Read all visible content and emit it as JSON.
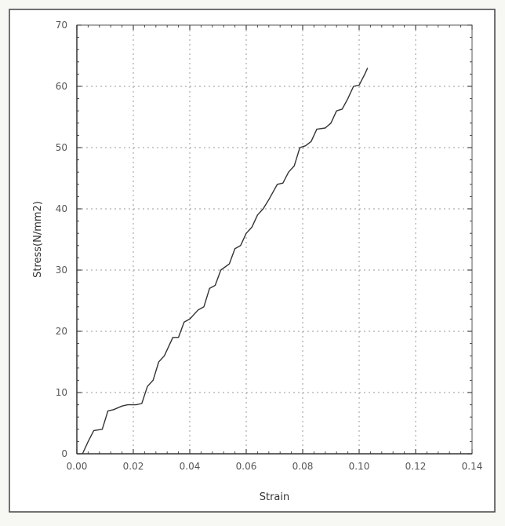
{
  "chart_data": {
    "type": "line",
    "xlabel": "Strain",
    "ylabel": "Stress(N/mm2)",
    "xlim": [
      0,
      0.14
    ],
    "ylim": [
      0,
      70
    ],
    "x_ticks": [
      "0.00",
      "0.02",
      "0.04",
      "0.06",
      "0.08",
      "0.10",
      "0.12",
      "0.14"
    ],
    "y_ticks": [
      "0",
      "10",
      "20",
      "30",
      "40",
      "50",
      "60",
      "70"
    ],
    "grid": true,
    "series": [
      {
        "color": "#333333",
        "points": [
          [
            0.002,
            0
          ],
          [
            0.004,
            2
          ],
          [
            0.006,
            3.8
          ],
          [
            0.009,
            4
          ],
          [
            0.011,
            7
          ],
          [
            0.013,
            7.2
          ],
          [
            0.016,
            7.8
          ],
          [
            0.018,
            8
          ],
          [
            0.021,
            8
          ],
          [
            0.023,
            8.2
          ],
          [
            0.025,
            11
          ],
          [
            0.027,
            12
          ],
          [
            0.029,
            15
          ],
          [
            0.031,
            16
          ],
          [
            0.034,
            19
          ],
          [
            0.036,
            19
          ],
          [
            0.038,
            21.5
          ],
          [
            0.04,
            22
          ],
          [
            0.043,
            23.5
          ],
          [
            0.045,
            24
          ],
          [
            0.047,
            27
          ],
          [
            0.049,
            27.5
          ],
          [
            0.051,
            30
          ],
          [
            0.054,
            31
          ],
          [
            0.056,
            33.5
          ],
          [
            0.058,
            34
          ],
          [
            0.06,
            36
          ],
          [
            0.062,
            37
          ],
          [
            0.064,
            39
          ],
          [
            0.066,
            40
          ],
          [
            0.068,
            41.5
          ],
          [
            0.071,
            44
          ],
          [
            0.073,
            44.2
          ],
          [
            0.075,
            46
          ],
          [
            0.077,
            47
          ],
          [
            0.079,
            50
          ],
          [
            0.081,
            50.3
          ],
          [
            0.083,
            51
          ],
          [
            0.085,
            53
          ],
          [
            0.088,
            53.2
          ],
          [
            0.09,
            54
          ],
          [
            0.092,
            56
          ],
          [
            0.094,
            56.3
          ],
          [
            0.096,
            58
          ],
          [
            0.098,
            60
          ],
          [
            0.1,
            60.2
          ],
          [
            0.102,
            62
          ],
          [
            0.103,
            63
          ]
        ]
      }
    ]
  }
}
